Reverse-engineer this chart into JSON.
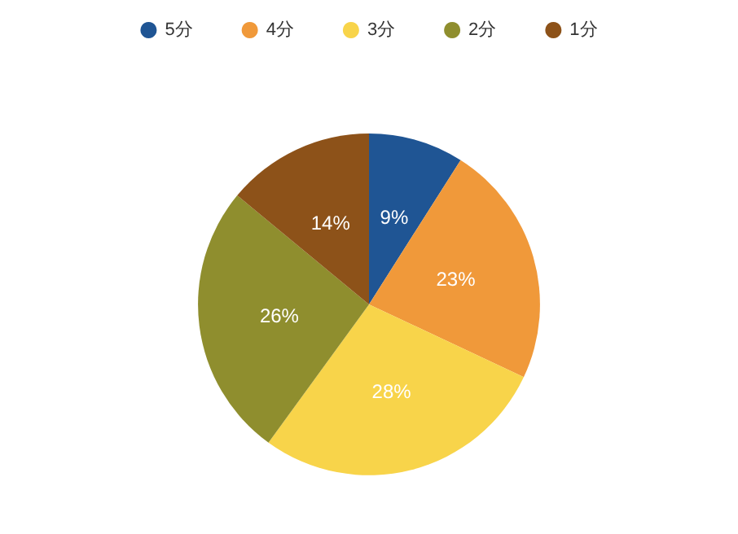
{
  "chart_data": {
    "type": "pie",
    "categories": [
      "5分",
      "4分",
      "3分",
      "2分",
      "1分"
    ],
    "values": [
      9,
      23,
      28,
      26,
      14
    ],
    "value_labels": [
      "9%",
      "23%",
      "28%",
      "26%",
      "14%"
    ],
    "colors": [
      "#1f5594",
      "#f0993a",
      "#f8d44a",
      "#8f8e2e",
      "#8d5219"
    ],
    "legend": "top"
  }
}
